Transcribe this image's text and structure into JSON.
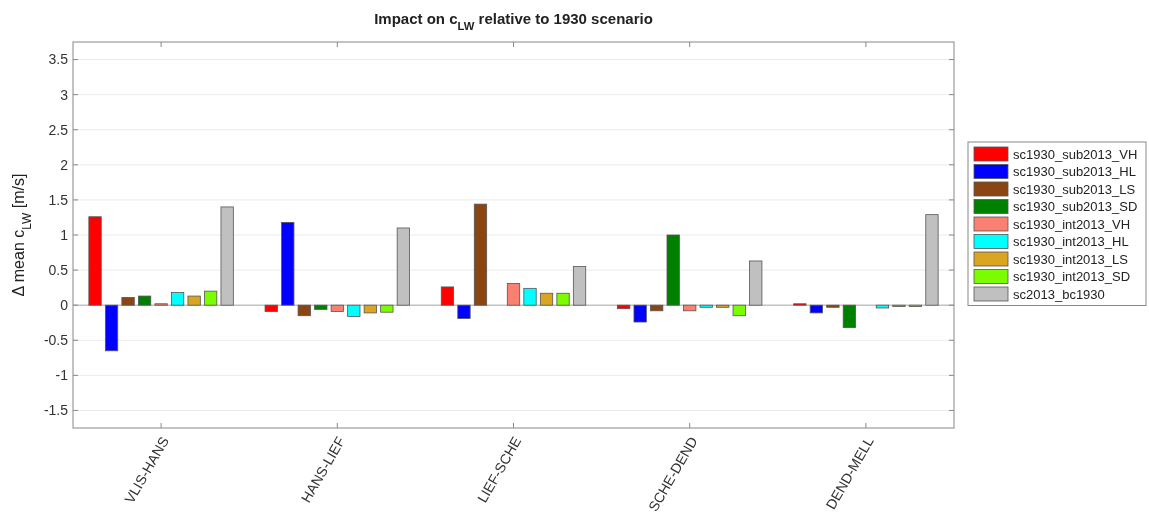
{
  "chart_data": {
    "type": "bar",
    "title": "Impact on c$_{LW}$ relative to 1930 scenario",
    "ylabel": "Δ mean c$_{LW}$ [m/s]",
    "categories": [
      "VLIS-HANS",
      "HANS-LIEF",
      "LIEF-SCHE",
      "SCHE-DEND",
      "DEND-MELL"
    ],
    "series": [
      {
        "name": "sc1930_sub2013_VH",
        "color": "#ff0000",
        "values": [
          1.26,
          -0.09,
          0.26,
          -0.05,
          0.02
        ]
      },
      {
        "name": "sc1930_sub2013_HL",
        "color": "#0000ff",
        "values": [
          -0.65,
          1.18,
          -0.19,
          -0.24,
          -0.11
        ]
      },
      {
        "name": "sc1930_sub2013_LS",
        "color": "#8b4513",
        "values": [
          0.11,
          -0.15,
          1.44,
          -0.08,
          -0.03
        ]
      },
      {
        "name": "sc1930_sub2013_SD",
        "color": "#008000",
        "values": [
          0.13,
          -0.06,
          null,
          1.0,
          -0.32
        ]
      },
      {
        "name": "sc1930_int2013_VH",
        "color": "#fa8072",
        "values": [
          0.02,
          -0.09,
          0.31,
          -0.08,
          null
        ]
      },
      {
        "name": "sc1930_int2013_HL",
        "color": "#00ffff",
        "values": [
          0.18,
          -0.16,
          0.24,
          -0.03,
          -0.04
        ]
      },
      {
        "name": "sc1930_int2013_LS",
        "color": "#daa520",
        "values": [
          0.13,
          -0.11,
          0.17,
          -0.03,
          -0.02
        ]
      },
      {
        "name": "sc1930_int2013_SD",
        "color": "#7cfc00",
        "values": [
          0.2,
          -0.1,
          0.17,
          -0.15,
          -0.02
        ]
      },
      {
        "name": "sc2013_bc1930",
        "color": "#c0c0c0",
        "values": [
          1.4,
          1.1,
          0.55,
          0.63,
          1.29
        ]
      }
    ],
    "ylim": [
      -1.75,
      3.75
    ],
    "yticks": [
      -1.5,
      -1,
      -0.5,
      0,
      0.5,
      1,
      1.5,
      2,
      2.5,
      3,
      3.5
    ],
    "grid": "y",
    "legend": "right"
  }
}
